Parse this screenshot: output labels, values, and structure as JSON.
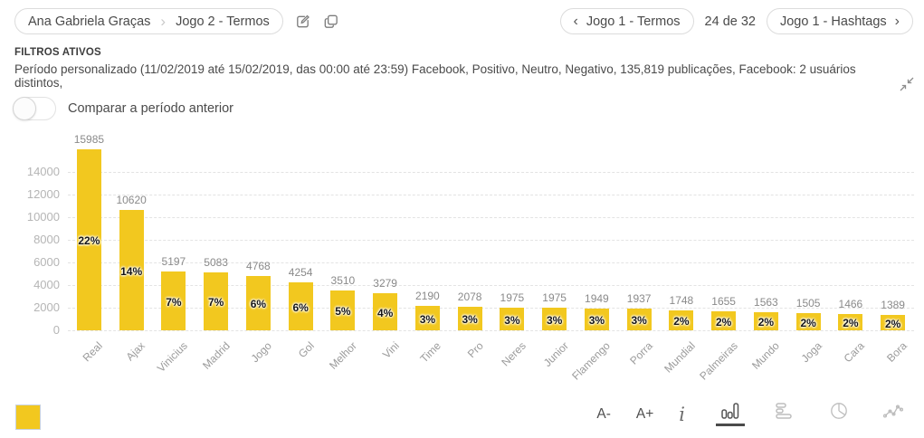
{
  "header": {
    "breadcrumb": {
      "parent": "Ana Gabriela Graças",
      "current": "Jogo 2 - Termos"
    },
    "nav": {
      "prev_label": "Jogo 1 - Termos",
      "counter": "24 de 32",
      "next_label": "Jogo 1 - Hashtags"
    }
  },
  "filters": {
    "title": "FILTROS ATIVOS",
    "description": "Período personalizado (11/02/2019 até 15/02/2019, das 00:00 até 23:59) Facebook, Positivo, Neutro, Negativo, 135,819 publicações, Facebook: 2 usuários distintos,"
  },
  "compare_toggle": {
    "label": "Comparar a período anterior",
    "state": "off"
  },
  "chart_data": {
    "type": "bar",
    "title": "",
    "xlabel": "",
    "ylabel": "",
    "categories": [
      "Real",
      "Ajax",
      "Vinicius",
      "Madrid",
      "Jogo",
      "Gol",
      "Melhor",
      "Vini",
      "Time",
      "Pro",
      "Neres",
      "Junior",
      "Flamengo",
      "Porra",
      "Mundial",
      "Palmeiras",
      "Mundo",
      "Joga",
      "Cara",
      "Bora"
    ],
    "values": [
      15985,
      10620,
      5197,
      5083,
      4768,
      4254,
      3510,
      3279,
      2190,
      2078,
      1975,
      1975,
      1949,
      1937,
      1748,
      1655,
      1563,
      1505,
      1466,
      1389
    ],
    "percent_labels": [
      "22%",
      "14%",
      "7%",
      "7%",
      "6%",
      "6%",
      "5%",
      "4%",
      "3%",
      "3%",
      "3%",
      "3%",
      "3%",
      "3%",
      "2%",
      "2%",
      "2%",
      "2%",
      "2%",
      "2%"
    ],
    "y_ticks": [
      0,
      2000,
      4000,
      6000,
      8000,
      10000,
      12000,
      14000
    ],
    "ylim": [
      0,
      16000
    ],
    "grid": "dashed-horizontal",
    "legend_position": "bottom-left",
    "bar_color": "#F2C81F"
  },
  "footer": {
    "font_smaller": "A-",
    "font_larger": "A+",
    "chart_types": [
      "vertical-bar",
      "horizontal-bar",
      "pie",
      "line"
    ],
    "selected_chart_type": "vertical-bar"
  },
  "colors": {
    "accent_yellow": "#F2C81F",
    "text_dark": "#4a4a4a",
    "axis_gray": "#b5b5b5",
    "value_gray": "#8a8a8a"
  }
}
